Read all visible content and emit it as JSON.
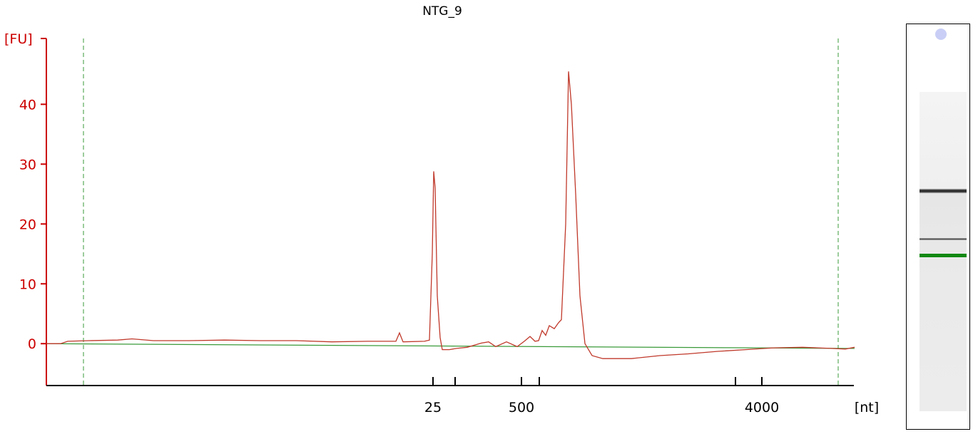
{
  "chart_data": {
    "type": "line",
    "title": "NTG_9",
    "ylabel": "[FU]",
    "xlabel": "[nt]",
    "ylim": [
      -7,
      51
    ],
    "yticks": [
      0,
      10,
      20,
      30,
      40
    ],
    "x_tick_labels": [
      "25",
      "500",
      "4000"
    ],
    "x_tick_positions_unlabeled": [
      "200",
      "1000",
      "2000"
    ],
    "colors": {
      "trace": "#c0392b",
      "baseline": "#3a9a3a",
      "axis": "#cc0000",
      "markers": "#3a9a3a",
      "gel_lower_marker": "#118811"
    },
    "series": [
      {
        "role": "trace",
        "points": [
          [
            0,
            0
          ],
          [
            20,
            0
          ],
          [
            30,
            0.4
          ],
          [
            60,
            0.5
          ],
          [
            100,
            0.6
          ],
          [
            120,
            0.8
          ],
          [
            150,
            0.5
          ],
          [
            200,
            0.5
          ],
          [
            250,
            0.6
          ],
          [
            300,
            0.5
          ],
          [
            350,
            0.5
          ],
          [
            400,
            0.3
          ],
          [
            450,
            0.4
          ],
          [
            490,
            0.4
          ],
          [
            495,
            1.8
          ],
          [
            500,
            0.3
          ],
          [
            530,
            0.4
          ],
          [
            537,
            0.6
          ],
          [
            541,
            15
          ],
          [
            543,
            28.8
          ],
          [
            545,
            26
          ],
          [
            548,
            8
          ],
          [
            552,
            1
          ],
          [
            555,
            -1
          ],
          [
            565,
            -1
          ],
          [
            575,
            -0.8
          ],
          [
            590,
            -0.6
          ],
          [
            610,
            0.1
          ],
          [
            620,
            0.3
          ],
          [
            630,
            -0.5
          ],
          [
            645,
            0.3
          ],
          [
            660,
            -0.5
          ],
          [
            670,
            0.4
          ],
          [
            678,
            1.2
          ],
          [
            685,
            0.4
          ],
          [
            690,
            0.5
          ],
          [
            695,
            2.2
          ],
          [
            700,
            1.4
          ],
          [
            705,
            3
          ],
          [
            712,
            2.5
          ],
          [
            718,
            3.5
          ],
          [
            722,
            4
          ],
          [
            728,
            20
          ],
          [
            732,
            45.5
          ],
          [
            736,
            40
          ],
          [
            742,
            25
          ],
          [
            748,
            8
          ],
          [
            755,
            0
          ],
          [
            765,
            -2
          ],
          [
            780,
            -2.5
          ],
          [
            820,
            -2.5
          ],
          [
            860,
            -2
          ],
          [
            900,
            -1.7
          ],
          [
            940,
            -1.3
          ],
          [
            980,
            -1.0
          ],
          [
            1020,
            -0.7
          ],
          [
            1060,
            -0.6
          ],
          [
            1100,
            -0.8
          ],
          [
            1120,
            -0.9
          ],
          [
            1133,
            -0.6
          ]
        ]
      }
    ]
  },
  "gel": {
    "bands": [
      {
        "position": 0.31,
        "darkness": 0.95,
        "thickness": 6
      },
      {
        "position": 0.46,
        "darkness": 0.75,
        "thickness": 3
      }
    ]
  }
}
